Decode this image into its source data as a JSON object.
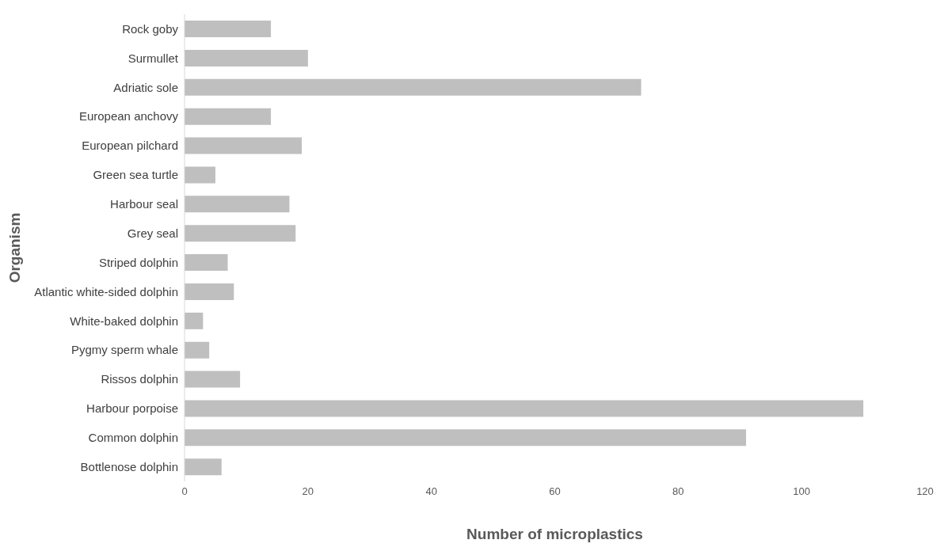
{
  "chart_data": {
    "type": "bar",
    "orientation": "horizontal",
    "xlabel": "Number of microplastics",
    "ylabel": "Organism",
    "categories": [
      "Rock goby",
      "Surmullet",
      "Adriatic sole",
      "European anchovy",
      "European pilchard",
      "Green sea turtle",
      "Harbour seal",
      "Grey seal",
      "Striped dolphin",
      "Atlantic white-sided dolphin",
      "White-baked dolphin",
      "Pygmy sperm whale",
      "Rissos dolphin",
      "Harbour porpoise",
      "Common dolphin",
      "Bottlenose dolphin"
    ],
    "values": [
      14,
      20,
      74,
      14,
      19,
      5,
      17,
      18,
      7,
      8,
      3,
      4,
      9,
      110,
      91,
      6
    ],
    "color": "#bfbfbf",
    "xlim": [
      0,
      120
    ],
    "xticks": [
      0,
      20,
      40,
      60,
      80,
      100,
      120
    ],
    "grid": false,
    "legend": false
  }
}
